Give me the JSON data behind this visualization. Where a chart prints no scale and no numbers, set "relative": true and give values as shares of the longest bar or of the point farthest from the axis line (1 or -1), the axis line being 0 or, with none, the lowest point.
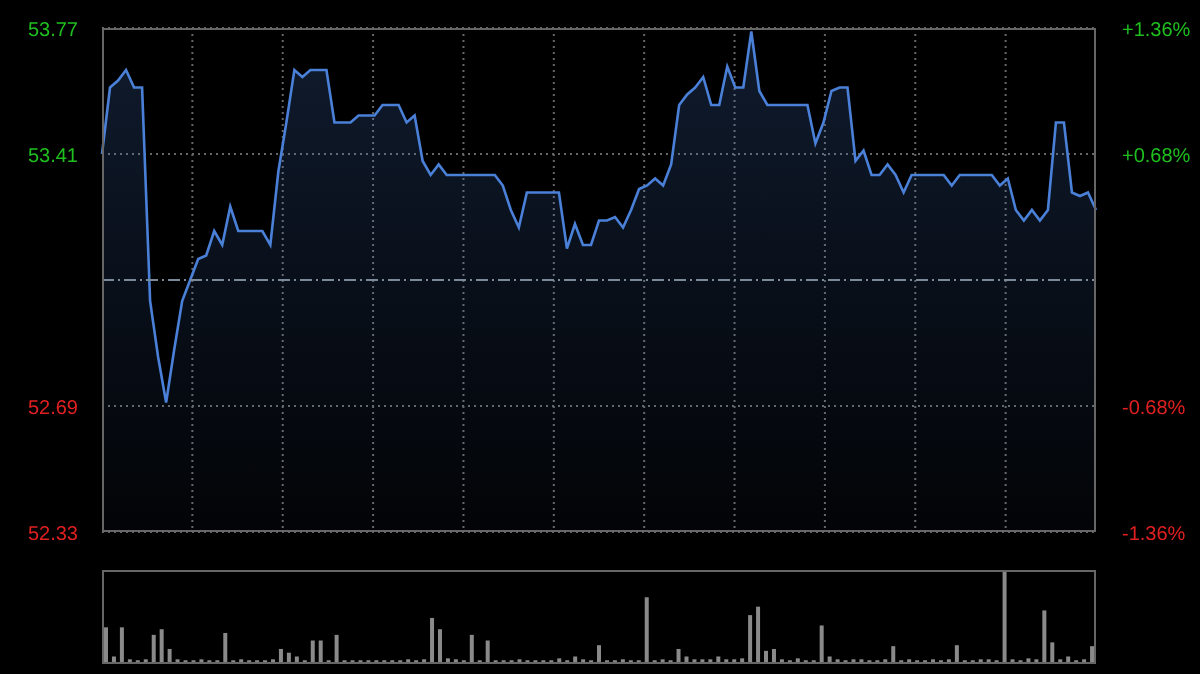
{
  "chart_data": [
    {
      "type": "area",
      "categories": [
        null,
        null,
        null,
        null,
        null,
        null,
        null,
        null,
        null,
        null,
        null,
        null,
        null,
        null,
        null,
        null,
        null,
        null,
        null,
        null,
        null,
        null,
        null,
        null,
        null,
        null,
        null,
        null,
        null,
        null,
        null,
        null,
        null,
        null,
        null,
        null,
        null,
        null,
        null,
        null,
        null,
        null,
        null,
        null,
        null,
        null,
        null,
        null,
        null,
        null,
        null,
        null,
        null,
        null,
        null,
        null,
        null,
        null,
        null,
        null,
        null,
        null,
        null,
        null,
        null,
        null,
        null,
        null,
        null,
        null,
        null,
        null,
        null,
        null,
        null,
        null,
        null,
        null,
        null,
        null,
        null,
        null,
        null,
        null,
        null,
        null,
        null,
        null,
        null,
        null,
        null,
        null,
        null,
        null,
        null,
        null,
        null,
        null,
        null,
        null,
        null,
        null,
        null,
        null,
        null,
        null,
        null,
        null,
        null,
        null,
        null,
        null,
        null,
        null,
        null,
        null,
        null,
        null,
        null,
        null,
        null,
        null,
        null,
        null,
        null
      ],
      "series": [
        {
          "color": "#4a80d8",
          "values": [
            53.41,
            53.6,
            53.62,
            53.65,
            53.6,
            53.6,
            52.99,
            52.83,
            52.7,
            52.85,
            52.99,
            53.05,
            53.11,
            53.12,
            53.19,
            53.15,
            53.26,
            53.19,
            53.19,
            53.19,
            53.19,
            53.15,
            53.36,
            53.5,
            53.65,
            53.63,
            53.65,
            53.65,
            53.65,
            53.5,
            53.5,
            53.5,
            53.52,
            53.52,
            53.52,
            53.55,
            53.55,
            53.55,
            53.5,
            53.52,
            53.39,
            53.35,
            53.38,
            53.35,
            53.35,
            53.35,
            53.35,
            53.35,
            53.35,
            53.35,
            53.32,
            53.25,
            53.2,
            53.3,
            53.3,
            53.3,
            53.3,
            53.3,
            53.14,
            53.21,
            53.15,
            53.15,
            53.22,
            53.22,
            53.23,
            53.2,
            53.25,
            53.31,
            53.32,
            53.34,
            53.32,
            53.38,
            53.55,
            53.58,
            53.6,
            53.63,
            53.55,
            53.55,
            53.66,
            53.6,
            53.6,
            53.76,
            53.59,
            53.55,
            53.55,
            53.55,
            53.55,
            53.55,
            53.55,
            53.44,
            53.5,
            53.59,
            53.6,
            53.6,
            53.39,
            53.42,
            53.35,
            53.35,
            53.38,
            53.35,
            53.3,
            53.35,
            53.35,
            53.35,
            53.35,
            53.35,
            53.32,
            53.35,
            53.35,
            53.35,
            53.35,
            53.35,
            53.32,
            53.34,
            53.25,
            53.22,
            53.25,
            53.22,
            53.25,
            53.5,
            53.5,
            53.3,
            53.29,
            53.3,
            53.25
          ]
        }
      ],
      "ylim": [
        52.33,
        53.77
      ],
      "yticks": [
        53.77,
        53.41,
        52.69,
        52.33
      ],
      "y2lim": [
        -1.36,
        1.36
      ],
      "y2ticks": [
        {
          "value": 1.36,
          "label": "+1.36%"
        },
        {
          "value": 0.68,
          "label": "+0.68%"
        },
        {
          "value": -0.68,
          "label": "-0.68%"
        },
        {
          "value": -1.36,
          "label": "-1.36%"
        }
      ],
      "ref_lines": [
        {
          "axis": "y",
          "value": 53.05,
          "color": "#7a8a99",
          "line_style": "dashed"
        }
      ],
      "grid": true
    },
    {
      "type": "bar",
      "relative": true,
      "categories": [
        null,
        null,
        null,
        null,
        null,
        null,
        null,
        null,
        null,
        null,
        null,
        null,
        null,
        null,
        null,
        null,
        null,
        null,
        null,
        null,
        null,
        null,
        null,
        null,
        null,
        null,
        null,
        null,
        null,
        null,
        null,
        null,
        null,
        null,
        null,
        null,
        null,
        null,
        null,
        null,
        null,
        null,
        null,
        null,
        null,
        null,
        null,
        null,
        null,
        null,
        null,
        null,
        null,
        null,
        null,
        null,
        null,
        null,
        null,
        null,
        null,
        null,
        null,
        null,
        null,
        null,
        null,
        null,
        null,
        null,
        null,
        null,
        null,
        null,
        null,
        null,
        null,
        null,
        null,
        null,
        null,
        null,
        null,
        null,
        null,
        null,
        null,
        null,
        null,
        null,
        null,
        null,
        null,
        null,
        null,
        null,
        null,
        null,
        null,
        null,
        null,
        null,
        null,
        null,
        null,
        null,
        null,
        null,
        null,
        null,
        null,
        null,
        null,
        null,
        null,
        null,
        null,
        null,
        null,
        null,
        null,
        null,
        null,
        null,
        null
      ],
      "series": [
        {
          "color": "#8a8a8a",
          "values": [
            0.39,
            0.08,
            0.39,
            0.05,
            0.04,
            0.05,
            0.31,
            0.37,
            0.16,
            0.05,
            0.04,
            0.04,
            0.05,
            0.04,
            0.04,
            0.33,
            0.04,
            0.05,
            0.04,
            0.04,
            0.04,
            0.05,
            0.16,
            0.12,
            0.08,
            0.04,
            0.25,
            0.25,
            0.04,
            0.31,
            0.04,
            0.04,
            0.04,
            0.04,
            0.04,
            0.04,
            0.04,
            0.04,
            0.05,
            0.04,
            0.05,
            0.49,
            0.37,
            0.06,
            0.05,
            0.04,
            0.31,
            0.04,
            0.25,
            0.04,
            0.04,
            0.04,
            0.05,
            0.04,
            0.04,
            0.04,
            0.04,
            0.06,
            0.04,
            0.08,
            0.05,
            0.04,
            0.2,
            0.04,
            0.04,
            0.05,
            0.04,
            0.04,
            0.71,
            0.04,
            0.05,
            0.04,
            0.16,
            0.08,
            0.05,
            0.05,
            0.05,
            0.08,
            0.05,
            0.05,
            0.06,
            0.52,
            0.61,
            0.14,
            0.16,
            0.05,
            0.04,
            0.06,
            0.04,
            0.04,
            0.41,
            0.08,
            0.05,
            0.04,
            0.05,
            0.05,
            0.04,
            0.04,
            0.05,
            0.19,
            0.04,
            0.05,
            0.04,
            0.04,
            0.05,
            0.04,
            0.05,
            0.2,
            0.04,
            0.04,
            0.05,
            0.05,
            0.04,
            1.0,
            0.05,
            0.04,
            0.06,
            0.05,
            0.57,
            0.23,
            0.05,
            0.08,
            0.04,
            0.05,
            0.19
          ]
        }
      ]
    }
  ]
}
